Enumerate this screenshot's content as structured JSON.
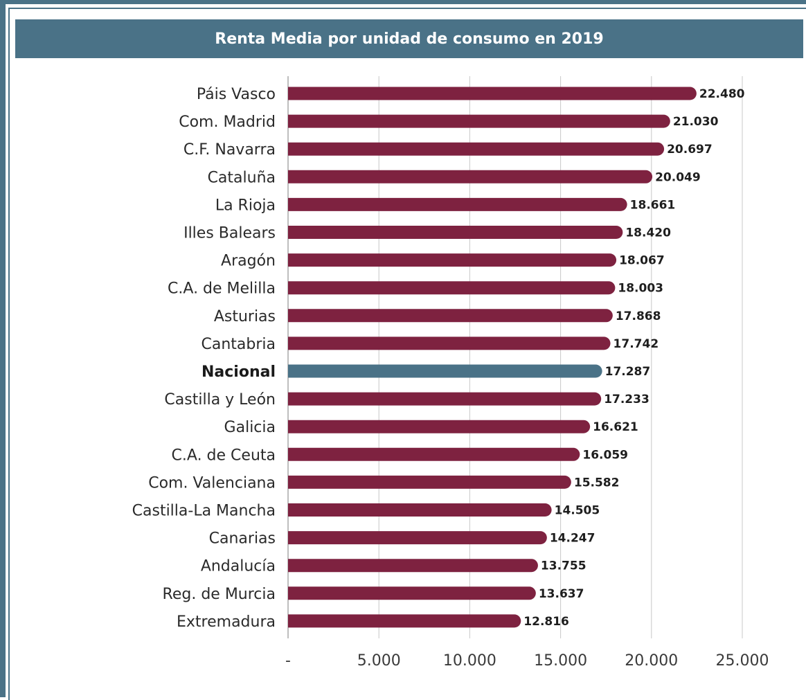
{
  "chart_data": {
    "type": "bar",
    "orientation": "horizontal",
    "title": "Renta Media por unidad de consumo en 2019",
    "categories": [
      "Páis Vasco",
      "Com. Madrid",
      "C.F. Navarra",
      "Cataluña",
      "La Rioja",
      "Illes Balears",
      "Aragón",
      "C.A. de Melilla",
      "Asturias",
      "Cantabria",
      "Nacional",
      "Castilla y León",
      "Galicia",
      "C.A. de Ceuta",
      "Com. Valenciana",
      "Castilla-La Mancha",
      "Canarias",
      "Andalucía",
      "Reg. de Murcia",
      "Extremadura"
    ],
    "values": [
      22480,
      21030,
      20697,
      20049,
      18661,
      18420,
      18067,
      18003,
      17868,
      17742,
      17287,
      17233,
      16621,
      16059,
      15582,
      14505,
      14247,
      13755,
      13637,
      12816
    ],
    "value_labels": [
      "22.480",
      "21.030",
      "20.697",
      "20.049",
      "18.661",
      "18.420",
      "18.067",
      "18.003",
      "17.868",
      "17.742",
      "17.287",
      "17.233",
      "16.621",
      "16.059",
      "15.582",
      "14.505",
      "14.247",
      "13.755",
      "13.637",
      "12.816"
    ],
    "highlight_category": "Nacional",
    "xlim": [
      0,
      25000
    ],
    "x_ticks": [
      0,
      5000,
      10000,
      15000,
      20000,
      25000
    ],
    "x_tick_labels": [
      "-",
      "5.000",
      "10.000",
      "15.000",
      "20.000",
      "25.000"
    ],
    "grid": true,
    "xlabel": "",
    "ylabel": ""
  },
  "colors": {
    "bar": "#7e2240",
    "highlight_bar": "#4a7287",
    "title_band": "#4a7287",
    "frame": "#4a7287",
    "gridline": "#c8c8c8",
    "axis": "#a8a8a8"
  }
}
